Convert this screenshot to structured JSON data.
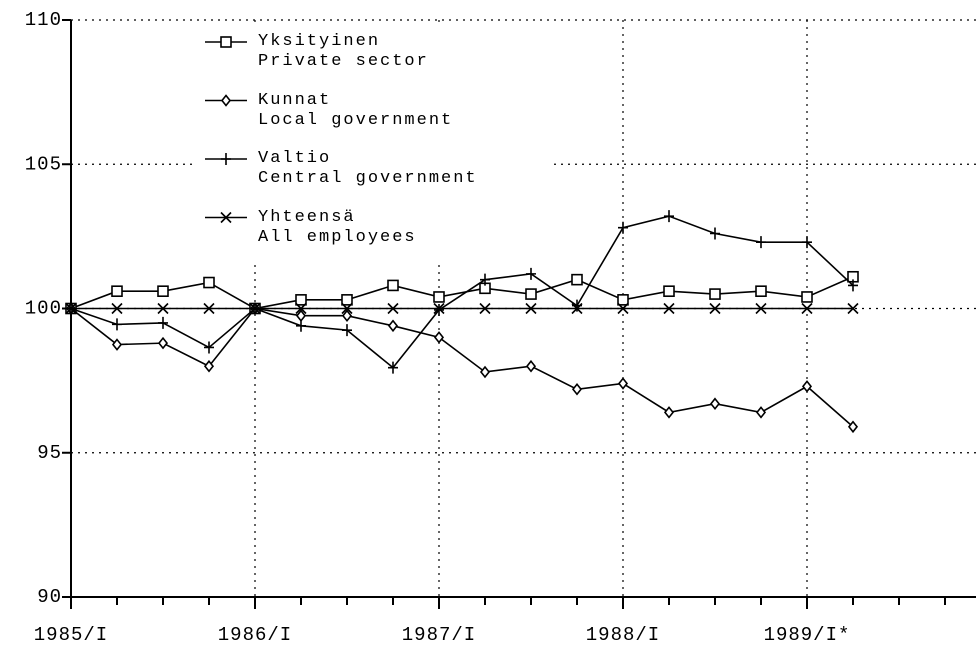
{
  "chart_data": {
    "type": "line",
    "categories": [
      "1985/I",
      null,
      null,
      null,
      "1986/I",
      null,
      null,
      null,
      "1987/I",
      null,
      null,
      null,
      "1988/I",
      null,
      null,
      null,
      "1989/I*",
      null,
      null,
      null
    ],
    "series": [
      {
        "name": "Yksityinen\nPrivate sector",
        "color": "#000",
        "marker": "square",
        "values": [
          100,
          100.6,
          100.6,
          100.9,
          100,
          100.3,
          100.3,
          100.8,
          100.4,
          100.7,
          100.5,
          101.0,
          100.3,
          100.6,
          100.5,
          100.6,
          100.4,
          101.1,
          null,
          null
        ]
      },
      {
        "name": "Kunnat\nLocal government",
        "color": "#000",
        "marker": "diamond",
        "values": [
          100,
          98.75,
          98.8,
          98.0,
          100,
          99.75,
          99.75,
          99.4,
          99.0,
          97.8,
          98.0,
          97.2,
          97.4,
          96.4,
          96.7,
          96.4,
          97.3,
          95.9,
          null,
          null
        ]
      },
      {
        "name": "Valtio\nCentral government",
        "color": "#000",
        "marker": "plus",
        "values": [
          100,
          99.45,
          99.5,
          98.65,
          100,
          99.4,
          99.25,
          97.95,
          99.95,
          101.0,
          101.2,
          100.1,
          102.8,
          103.2,
          102.6,
          102.3,
          102.3,
          100.8,
          null,
          null
        ]
      },
      {
        "name": "Yhteensä\nAll employees",
        "color": "#000",
        "marker": "cross",
        "values": [
          100,
          100,
          100,
          100,
          100,
          100,
          100,
          100,
          100,
          100,
          100,
          100,
          100,
          100,
          100,
          100,
          100,
          100,
          null,
          null
        ]
      }
    ],
    "ylim": [
      90,
      110
    ],
    "yticks": [
      90,
      95,
      100,
      105,
      110
    ],
    "grid": true
  }
}
